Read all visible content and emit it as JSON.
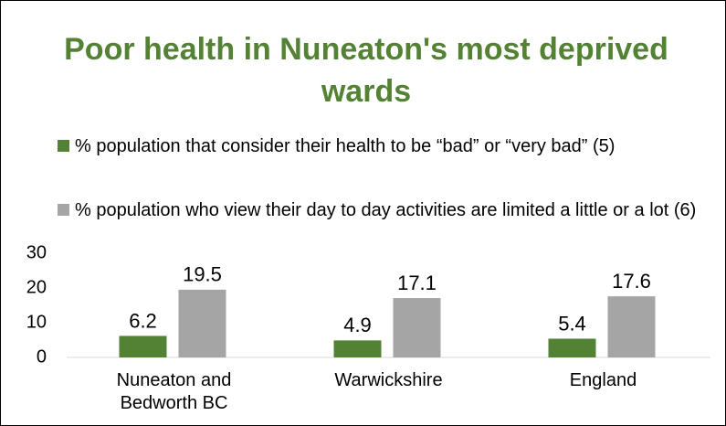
{
  "chart_data": {
    "type": "bar",
    "title": "Poor health in Nuneaton's most deprived wards",
    "categories": [
      "Nuneaton and Bedworth BC",
      "Warwickshire",
      "England"
    ],
    "series": [
      {
        "name": "% population that consider their health to be “bad” or “very bad” (5)",
        "color": "#548235",
        "values": [
          6.2,
          4.9,
          5.4
        ]
      },
      {
        "name": "% population who view their day to day activities are limited a little or a lot (6)",
        "color": "#a5a5a5",
        "values": [
          19.5,
          17.1,
          17.6
        ]
      }
    ],
    "ylim": [
      0,
      30
    ],
    "yticks": [
      0,
      10,
      20,
      30
    ],
    "grid": false
  }
}
